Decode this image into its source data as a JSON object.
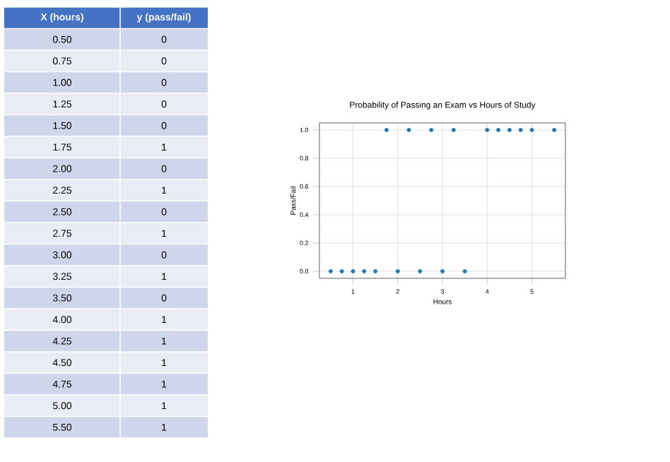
{
  "chart_data": {
    "type": "scatter",
    "title": "Probability of Passing an Exam vs Hours of Study",
    "xlabel": "Hours",
    "ylabel": "Pass/Fail",
    "x": [
      0.5,
      0.75,
      1.0,
      1.25,
      1.5,
      1.75,
      2.0,
      2.25,
      2.5,
      2.75,
      3.0,
      3.25,
      3.5,
      4.0,
      4.25,
      4.5,
      4.75,
      5.0,
      5.5
    ],
    "values": [
      0,
      0,
      0,
      0,
      0,
      1,
      0,
      1,
      0,
      1,
      0,
      1,
      0,
      1,
      1,
      1,
      1,
      1,
      1
    ],
    "annotations": [
      "X (hours)",
      "y (pass/fail)",
      "0.50",
      "0.75",
      "1.00",
      "1.25",
      "1.50",
      "1.75",
      "2.00",
      "2.25",
      "2.50",
      "2.75",
      "3.00",
      "3.25",
      "3.50",
      "4.00",
      "4.25",
      "4.50",
      "4.75",
      "5.00",
      "5.50",
      "0",
      "0",
      "0",
      "0",
      "0",
      "1",
      "0",
      "1",
      "0",
      "1",
      "0",
      "1",
      "0",
      "1",
      "1",
      "1",
      "1",
      "1",
      "1"
    ],
    "color": "#1f77b4",
    "marker": "circle",
    "grid": true,
    "xlim": [
      0.25,
      5.75
    ],
    "xticks": [
      1,
      2,
      3,
      4,
      5
    ],
    "ylim": [
      -0.05,
      1.05
    ],
    "yticks": [
      {
        "value": 0,
        "label": "0.0"
      },
      {
        "value": 0.2,
        "label": "0.2"
      },
      {
        "value": 0.4,
        "label": "0.4"
      },
      {
        "value": 0.6,
        "label": "0.6"
      },
      {
        "value": 0.8,
        "label": "0.8"
      },
      {
        "value": 1,
        "label": "1.0"
      }
    ]
  }
}
